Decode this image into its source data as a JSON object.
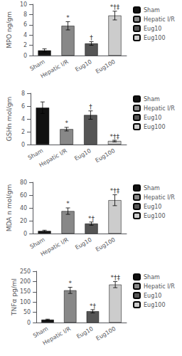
{
  "chart_data": [
    {
      "type": "bar",
      "ylabel": "MPO ng/gm",
      "categories": [
        "Sham",
        "Hepatic I/R",
        "Eug10",
        "Eug100"
      ],
      "colors": [
        "#111111",
        "#888888",
        "#555555",
        "#cccccc"
      ],
      "values": [
        1.0,
        5.8,
        2.35,
        7.8
      ],
      "errors": [
        0.3,
        0.8,
        0.35,
        0.85
      ],
      "annotations": [
        {
          "x": "Hepatic I/R",
          "y": 6.75,
          "text": "*"
        },
        {
          "x": "Eug10",
          "y": 2.8,
          "text": "†"
        },
        {
          "x": "Eug100",
          "y": 8.8,
          "text": "*†‡"
        }
      ],
      "ylim": [
        0,
        10
      ],
      "yticks": [
        0,
        2,
        4,
        6,
        8,
        10
      ],
      "grid": false,
      "legend": "right"
    },
    {
      "type": "bar",
      "ylabel": "GSHn mol/gm",
      "categories": [
        "Sham",
        "Hepatic I/R",
        "Eug10",
        "Eug100"
      ],
      "colors": [
        "#111111",
        "#888888",
        "#555555",
        "#cccccc"
      ],
      "values": [
        5.75,
        2.4,
        4.6,
        0.55
      ],
      "errors": [
        0.9,
        0.28,
        0.65,
        0.12
      ],
      "annotations": [
        {
          "x": "Hepatic I/R",
          "y": 2.8,
          "text": "*"
        },
        {
          "x": "Eug10",
          "y": 5.35,
          "text": "†"
        },
        {
          "x": "Eug100",
          "y": 0.75,
          "text": "*†‡"
        }
      ],
      "ylim": [
        0,
        8
      ],
      "yticks": [
        0,
        2,
        4,
        6,
        8
      ],
      "grid": false,
      "legend": "right"
    },
    {
      "type": "bar",
      "ylabel": "MDA n mol/gm",
      "categories": [
        "Sham",
        "Hepatic I/R",
        "Eug10",
        "Eug100"
      ],
      "colors": [
        "#111111",
        "#888888",
        "#555555",
        "#cccccc"
      ],
      "values": [
        4.0,
        35.0,
        15.5,
        52.0
      ],
      "errors": [
        1.2,
        5.0,
        2.5,
        8.5
      ],
      "annotations": [
        {
          "x": "Hepatic I/R",
          "y": 41.5,
          "text": "*"
        },
        {
          "x": "Eug10",
          "y": 18.5,
          "text": "*†"
        },
        {
          "x": "Eug100",
          "y": 62.0,
          "text": "*†‡"
        }
      ],
      "ylim": [
        0,
        80
      ],
      "yticks": [
        0,
        20,
        40,
        60,
        80
      ],
      "grid": false,
      "legend": "right"
    },
    {
      "type": "bar",
      "ylabel": "TNFα pg/ml",
      "categories": [
        "Sham",
        "Hepatic I/R",
        "Eug10",
        "Eug100"
      ],
      "colors": [
        "#111111",
        "#888888",
        "#555555",
        "#cccccc"
      ],
      "values": [
        14.0,
        157.0,
        55.0,
        185.0
      ],
      "errors": [
        2.5,
        15.0,
        8.0,
        15.0
      ],
      "annotations": [
        {
          "x": "Hepatic I/R",
          "y": 175.0,
          "text": "*"
        },
        {
          "x": "Eug10",
          "y": 65.0,
          "text": "*†"
        },
        {
          "x": "Eug100",
          "y": 203.0,
          "text": "*†‡"
        }
      ],
      "ylim": [
        0,
        250
      ],
      "yticks": [
        0,
        50,
        100,
        150,
        200,
        250
      ],
      "grid": false,
      "legend": "right"
    }
  ]
}
